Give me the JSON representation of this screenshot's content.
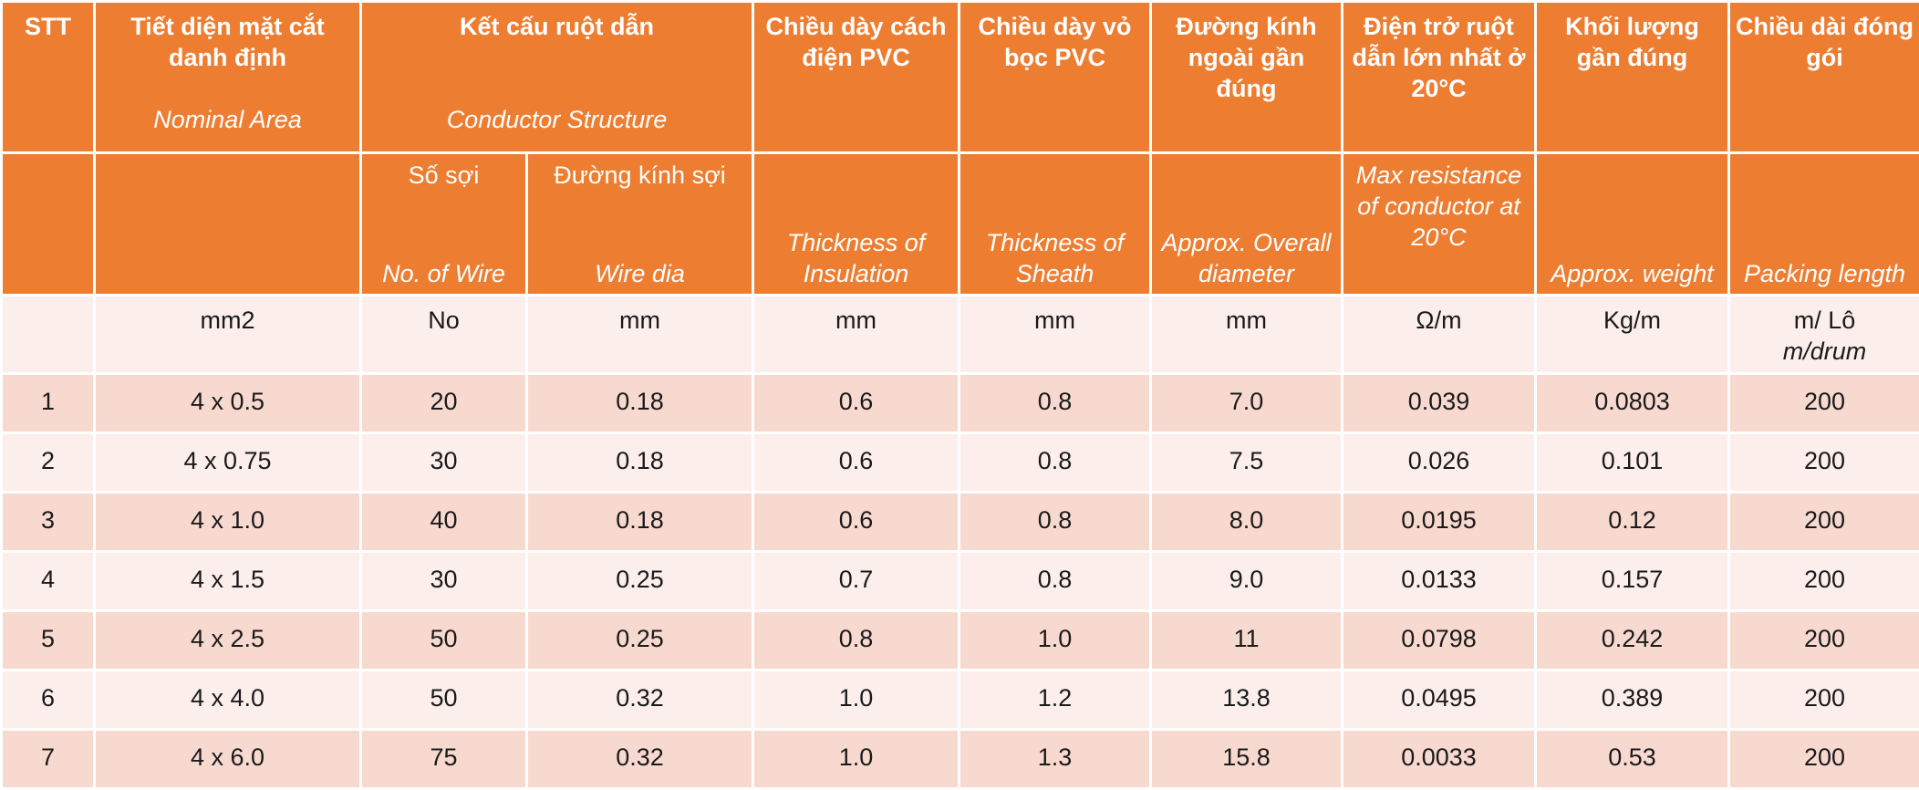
{
  "header": {
    "stt": "STT",
    "nominal_vi": "Tiết diện mặt cắt danh định",
    "nominal_en": "Nominal Area",
    "conductor_vi": "Kết cấu ruột dẫn",
    "conductor_en": "Conductor Structure",
    "insulation_vi": "Chiều dày cách điện PVC",
    "sheath_vi": "Chiều dày vỏ bọc PVC",
    "diameter_vi": "Đường kính ngoài gần đúng",
    "resistance_vi": "Điện trở ruột dẫn lớn nhất ở 20°C",
    "weight_vi": "Khối lượng gần đúng",
    "length_vi": "Chiều dài đóng gói"
  },
  "subheader": {
    "wire_count_vi": "Số sợi",
    "wire_count_en": "No. of Wire",
    "wire_dia_vi": "Đường kính sợi",
    "wire_dia_en": "Wire dia",
    "insulation_en": "Thickness of Insulation",
    "sheath_en": "Thickness of Sheath",
    "diameter_en": "Approx. Overall diameter",
    "resistance_en": "Max resistance of conductor at 20°C",
    "weight_en": "Approx. weight",
    "length_en": "Packing length"
  },
  "units": {
    "stt": "",
    "area": "mm2",
    "wire_count": "No",
    "wire_dia": "mm",
    "insulation": "mm",
    "sheath": "mm",
    "diameter": "mm",
    "resistance": "Ω/m",
    "weight": "Kg/m",
    "length_vi": "m/ Lô",
    "length_en": "m/drum"
  },
  "rows": [
    {
      "stt": "1",
      "area": "4 x 0.5",
      "wires": "20",
      "dia": "0.18",
      "ins": "0.6",
      "sheath": "0.8",
      "od": "7.0",
      "res": "0.039",
      "weight": "0.0803",
      "len": "200"
    },
    {
      "stt": "2",
      "area": "4 x 0.75",
      "wires": "30",
      "dia": "0.18",
      "ins": "0.6",
      "sheath": "0.8",
      "od": "7.5",
      "res": "0.026",
      "weight": "0.101",
      "len": "200"
    },
    {
      "stt": "3",
      "area": "4 x 1.0",
      "wires": "40",
      "dia": "0.18",
      "ins": "0.6",
      "sheath": "0.8",
      "od": "8.0",
      "res": "0.0195",
      "weight": "0.12",
      "len": "200"
    },
    {
      "stt": "4",
      "area": "4 x 1.5",
      "wires": "30",
      "dia": "0.25",
      "ins": "0.7",
      "sheath": "0.8",
      "od": "9.0",
      "res": "0.0133",
      "weight": "0.157",
      "len": "200"
    },
    {
      "stt": "5",
      "area": "4 x 2.5",
      "wires": "50",
      "dia": "0.25",
      "ins": "0.8",
      "sheath": "1.0",
      "od": "11",
      "res": "0.0798",
      "weight": "0.242",
      "len": "200"
    },
    {
      "stt": "6",
      "area": "4 x 4.0",
      "wires": "50",
      "dia": "0.32",
      "ins": "1.0",
      "sheath": "1.2",
      "od": "13.8",
      "res": "0.0495",
      "weight": "0.389",
      "len": "200"
    },
    {
      "stt": "7",
      "area": "4 x 6.0",
      "wires": "75",
      "dia": "0.32",
      "ins": "1.0",
      "sheath": "1.3",
      "od": "15.8",
      "res": "0.0033",
      "weight": "0.53",
      "len": "200"
    }
  ],
  "colors": {
    "header_orange": "#ED7D31",
    "row_light": "#FCEFEB",
    "row_dark": "#F8D9D0"
  }
}
